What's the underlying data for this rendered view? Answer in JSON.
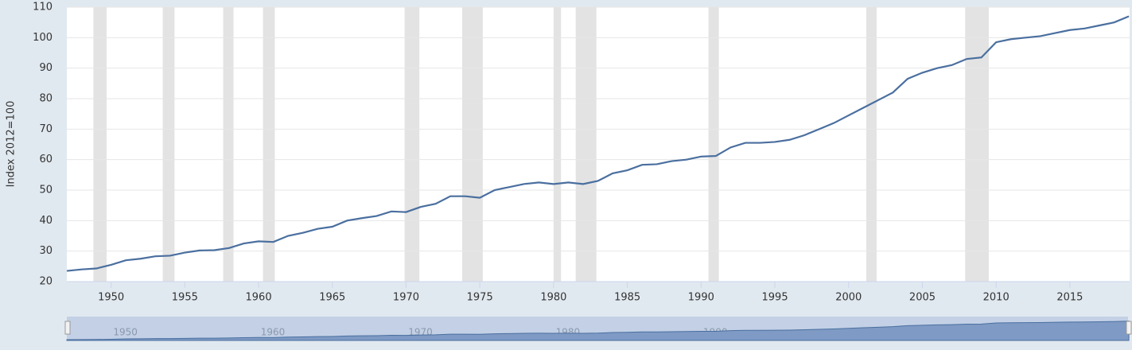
{
  "chart_data": {
    "type": "line",
    "y_label": "Index 2012=100",
    "x": [
      1947,
      1948,
      1949,
      1950,
      1951,
      1952,
      1953,
      1954,
      1955,
      1956,
      1957,
      1958,
      1959,
      1960,
      1961,
      1962,
      1963,
      1964,
      1965,
      1966,
      1967,
      1968,
      1969,
      1970,
      1971,
      1972,
      1973,
      1974,
      1975,
      1976,
      1977,
      1978,
      1979,
      1980,
      1981,
      1982,
      1983,
      1984,
      1985,
      1986,
      1987,
      1988,
      1989,
      1990,
      1991,
      1992,
      1993,
      1994,
      1995,
      1996,
      1997,
      1998,
      1999,
      2000,
      2001,
      2002,
      2003,
      2004,
      2005,
      2006,
      2007,
      2008,
      2009,
      2010,
      2011,
      2012,
      2013,
      2014,
      2015,
      2016,
      2017,
      2018,
      2019
    ],
    "series": [
      {
        "color": "#4a6f9f",
        "values": [
          23.5,
          24.0,
          24.3,
          25.5,
          27.0,
          27.5,
          28.3,
          28.5,
          29.5,
          30.2,
          30.3,
          31.0,
          32.5,
          33.2,
          33.0,
          35.0,
          36.0,
          37.3,
          38.0,
          40.0,
          40.8,
          41.5,
          43.0,
          42.8,
          44.5,
          45.5,
          48.0,
          48.0,
          47.5,
          50.0,
          51.0,
          52.0,
          52.5,
          52.0,
          52.5,
          52.0,
          53.0,
          55.5,
          56.5,
          58.3,
          58.5,
          59.5,
          60.0,
          61.0,
          61.2,
          64.0,
          65.5,
          65.5,
          65.8,
          66.5,
          68.0,
          70.0,
          72.0,
          74.5,
          77.0,
          79.5,
          82.0,
          86.5,
          88.5,
          90.0,
          91.0,
          93.0,
          93.5,
          98.5,
          99.5,
          100.0,
          100.5,
          101.5,
          102.5,
          103.0,
          104.0,
          105.0,
          107.0
        ]
      }
    ],
    "recessions": [
      [
        1948.8,
        1949.7
      ],
      [
        1953.5,
        1954.3
      ],
      [
        1957.6,
        1958.3
      ],
      [
        1960.3,
        1961.1
      ],
      [
        1969.9,
        1970.9
      ],
      [
        1973.8,
        1975.2
      ],
      [
        1980.0,
        1980.5
      ],
      [
        1981.5,
        1982.9
      ],
      [
        1990.5,
        1991.2
      ],
      [
        2001.2,
        2001.9
      ],
      [
        2007.9,
        2009.5
      ]
    ],
    "recession_color": "#e3e3e3",
    "xlim": [
      1947,
      2019.05
    ],
    "ylim": [
      20,
      110
    ],
    "xticks": [
      1950,
      1955,
      1960,
      1965,
      1970,
      1975,
      1980,
      1985,
      1990,
      1995,
      2000,
      2005,
      2010,
      2015
    ],
    "yticks": [
      20,
      30,
      40,
      50,
      60,
      70,
      80,
      90,
      100,
      110
    ],
    "grid": true,
    "navigator_ticks": [
      1950,
      1960,
      1970,
      1980,
      1990,
      2000,
      2010
    ]
  }
}
